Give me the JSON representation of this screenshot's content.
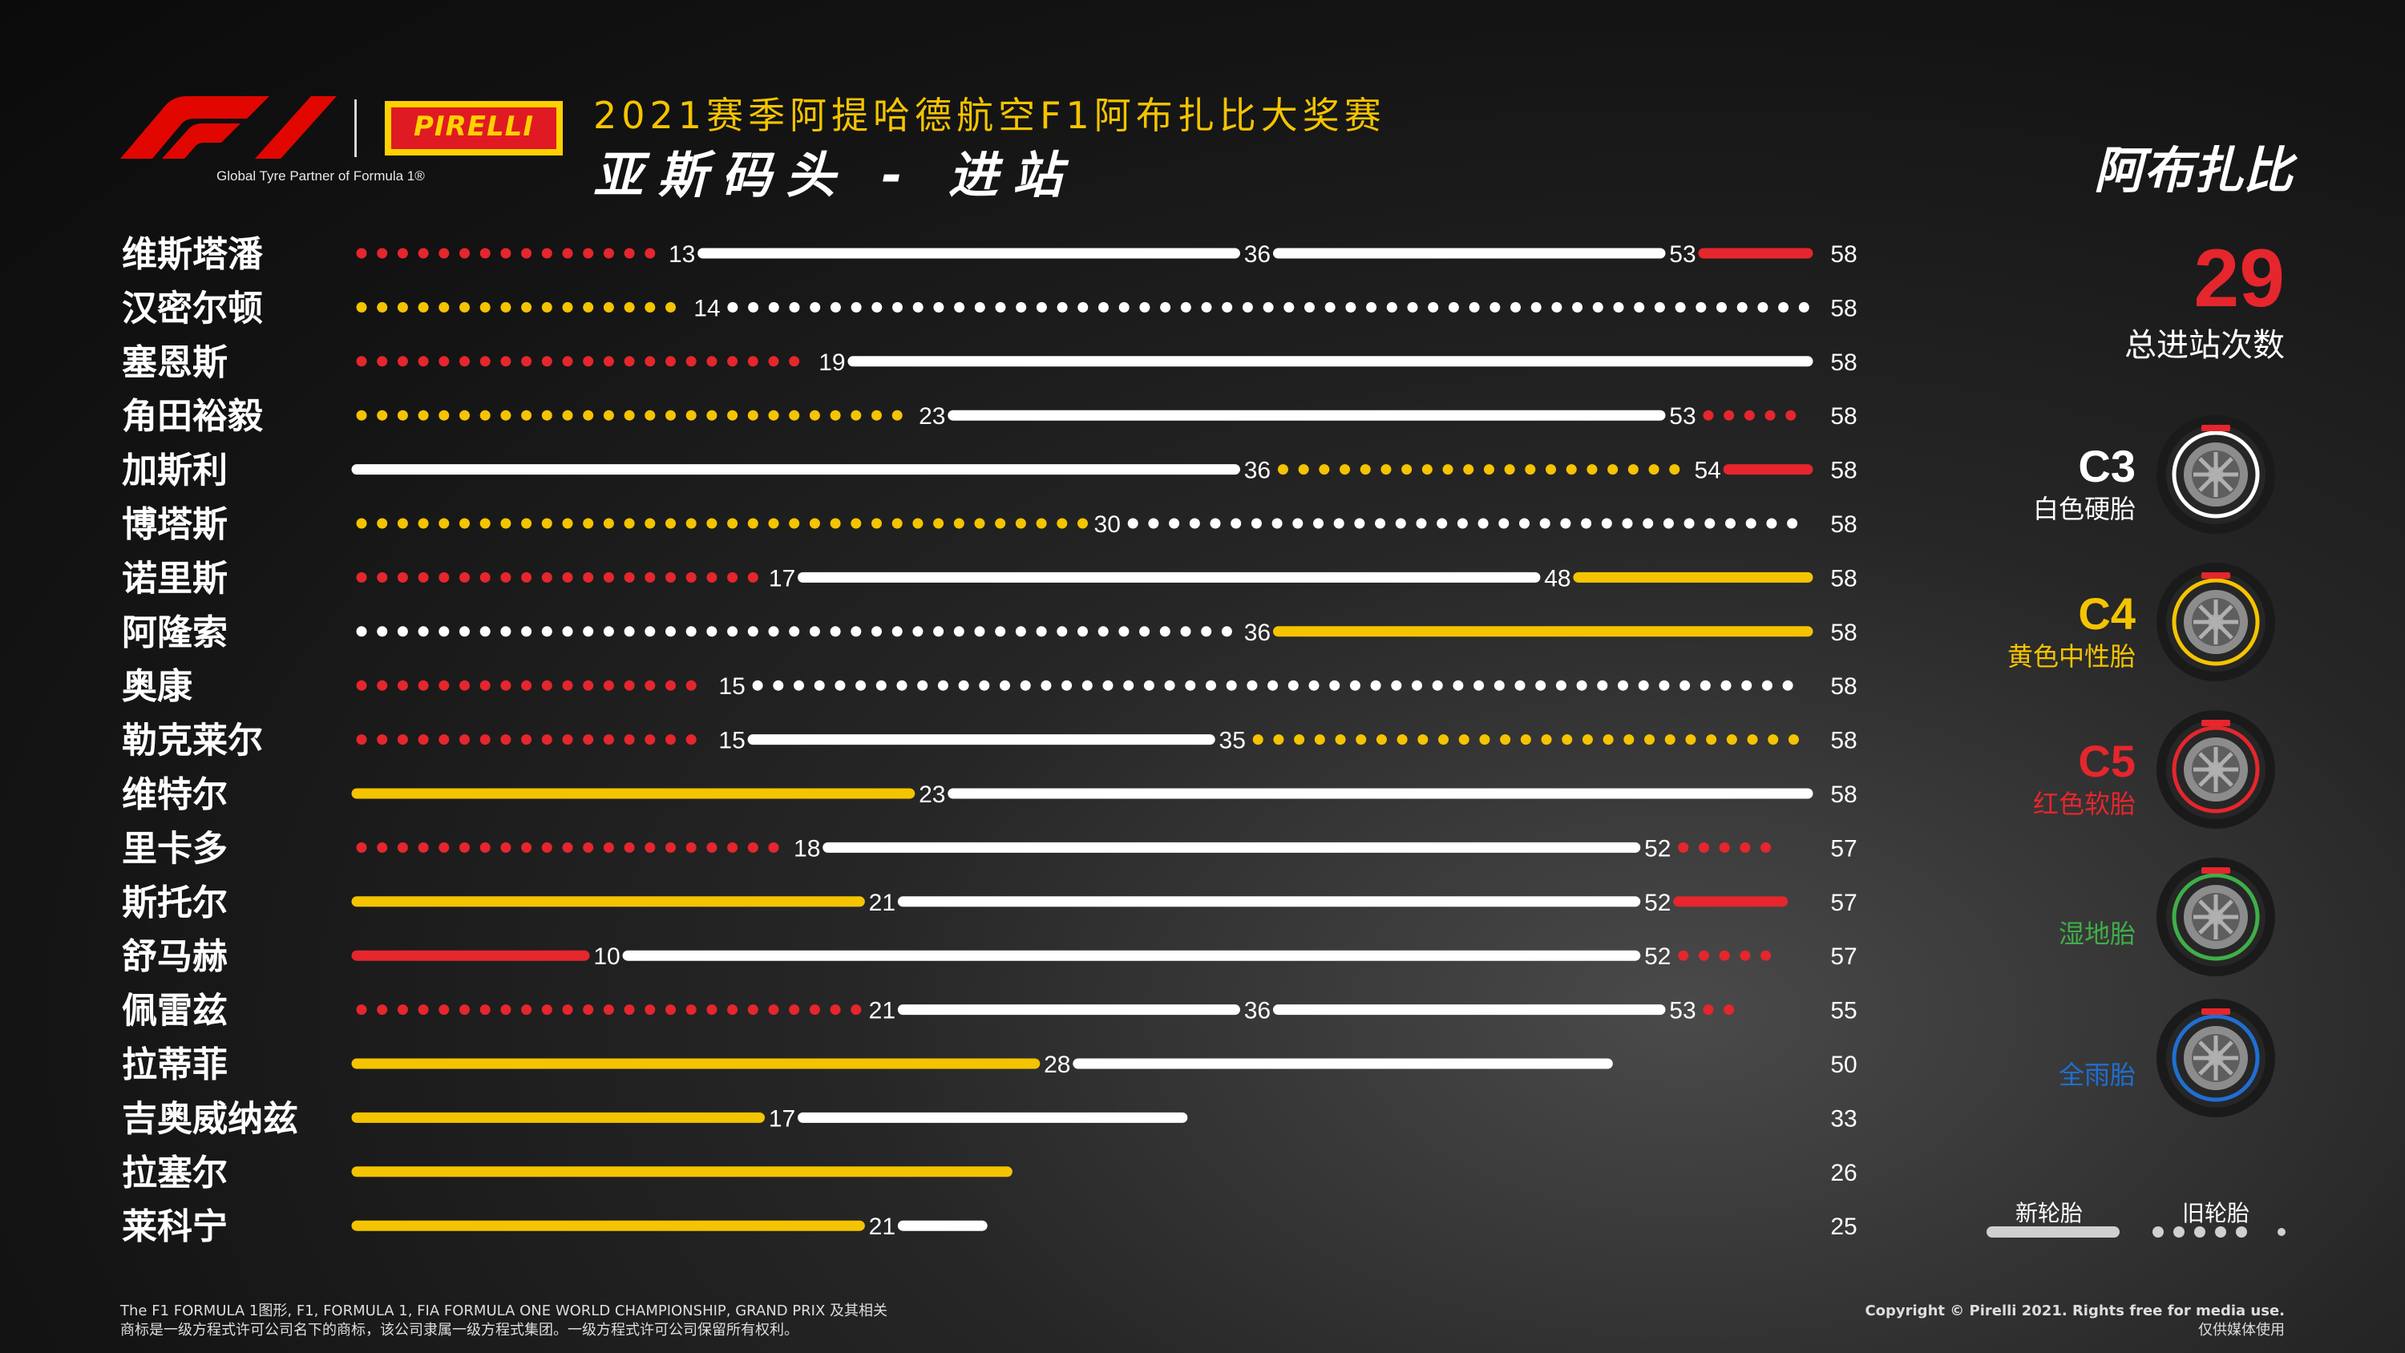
{
  "header": {
    "partner_text": "Global Tyre Partner of Formula 1®",
    "pirelli_word": "PIRELLI",
    "title_line1": "2021赛季阿提哈德航空F1阿布扎比大奖赛",
    "title_line2": "亚斯码头  -  进站",
    "race_name": "阿布扎比"
  },
  "summary": {
    "total_stops": "29",
    "total_label": "总进站次数"
  },
  "tyre_legend": [
    {
      "code": "C3",
      "desc": "白色硬胎",
      "color": "#ffffff",
      "icon": "pirelli-tyre-white-icon"
    },
    {
      "code": "C4",
      "desc": "黄色中性胎",
      "color": "#f5c400",
      "icon": "pirelli-tyre-yellow-icon"
    },
    {
      "code": "C5",
      "desc": "红色软胎",
      "color": "#e5262d",
      "icon": "pirelli-tyre-red-icon"
    },
    {
      "code": "",
      "desc": "湿地胎",
      "color": "#3fae49",
      "icon": "pirelli-tyre-green-icon"
    },
    {
      "code": "",
      "desc": "全雨胎",
      "color": "#1f6fd1",
      "icon": "pirelli-tyre-blue-icon"
    }
  ],
  "usage_legend": {
    "new_label": "新轮胎",
    "used_label": "旧轮胎"
  },
  "footer": {
    "left_line1": "The F1 FORMULA 1图形, F1, FORMULA 1, FIA FORMULA ONE WORLD CHAMPIONSHIP, GRAND PRIX 及其相关",
    "left_line2": "商标是一级方程式许可公司名下的商标，该公司隶属一级方程式集团。一级方程式许可公司保留所有权利。",
    "right_line1": "Copyright © Pirelli 2021. Rights free for media use.",
    "right_line2": "仅供媒体使用"
  },
  "chart_data": {
    "type": "bar",
    "subtype": "stint-timeline",
    "x_unit": "lap",
    "xlim": [
      0,
      58
    ],
    "compound_colors": {
      "C3": "#ffffff",
      "C4": "#f5c400",
      "C5": "#e5262d"
    },
    "drivers": [
      {
        "name": "维斯塔潘",
        "laps": 58,
        "stints": [
          {
            "compound": "C5",
            "new": false,
            "start": 0,
            "end": 13
          },
          {
            "compound": "C3",
            "new": true,
            "start": 13,
            "end": 36
          },
          {
            "compound": "C3",
            "new": true,
            "start": 36,
            "end": 53
          },
          {
            "compound": "C5",
            "new": true,
            "start": 53,
            "end": 58
          }
        ]
      },
      {
        "name": "汉密尔顿",
        "laps": 58,
        "stints": [
          {
            "compound": "C4",
            "new": false,
            "start": 0,
            "end": 14
          },
          {
            "compound": "C3",
            "new": false,
            "start": 14,
            "end": 58
          }
        ]
      },
      {
        "name": "塞恩斯",
        "laps": 58,
        "stints": [
          {
            "compound": "C5",
            "new": false,
            "start": 0,
            "end": 19
          },
          {
            "compound": "C3",
            "new": true,
            "start": 19,
            "end": 58
          }
        ]
      },
      {
        "name": "角田裕毅",
        "laps": 58,
        "stints": [
          {
            "compound": "C4",
            "new": false,
            "start": 0,
            "end": 23
          },
          {
            "compound": "C3",
            "new": true,
            "start": 23,
            "end": 53
          },
          {
            "compound": "C5",
            "new": false,
            "start": 53,
            "end": 58
          }
        ]
      },
      {
        "name": "加斯利",
        "laps": 58,
        "stints": [
          {
            "compound": "C3",
            "new": true,
            "start": 0,
            "end": 36
          },
          {
            "compound": "C4",
            "new": false,
            "start": 36,
            "end": 54
          },
          {
            "compound": "C5",
            "new": true,
            "start": 54,
            "end": 58
          }
        ]
      },
      {
        "name": "博塔斯",
        "laps": 58,
        "stints": [
          {
            "compound": "C4",
            "new": false,
            "start": 0,
            "end": 30
          },
          {
            "compound": "C3",
            "new": false,
            "start": 30,
            "end": 58
          }
        ]
      },
      {
        "name": "诺里斯",
        "laps": 58,
        "stints": [
          {
            "compound": "C5",
            "new": false,
            "start": 0,
            "end": 17
          },
          {
            "compound": "C3",
            "new": true,
            "start": 17,
            "end": 48
          },
          {
            "compound": "C4",
            "new": true,
            "start": 48,
            "end": 58
          }
        ]
      },
      {
        "name": "阿隆索",
        "laps": 58,
        "stints": [
          {
            "compound": "C3",
            "new": false,
            "start": 0,
            "end": 36
          },
          {
            "compound": "C4",
            "new": true,
            "start": 36,
            "end": 58
          }
        ]
      },
      {
        "name": "奥康",
        "laps": 58,
        "stints": [
          {
            "compound": "C5",
            "new": false,
            "start": 0,
            "end": 15
          },
          {
            "compound": "C3",
            "new": false,
            "start": 15,
            "end": 58
          }
        ]
      },
      {
        "name": "勒克莱尔",
        "laps": 58,
        "stints": [
          {
            "compound": "C5",
            "new": false,
            "start": 0,
            "end": 15
          },
          {
            "compound": "C3",
            "new": true,
            "start": 15,
            "end": 35
          },
          {
            "compound": "C4",
            "new": false,
            "start": 35,
            "end": 58
          }
        ]
      },
      {
        "name": "维特尔",
        "laps": 58,
        "stints": [
          {
            "compound": "C4",
            "new": true,
            "start": 0,
            "end": 23
          },
          {
            "compound": "C3",
            "new": true,
            "start": 23,
            "end": 58
          }
        ]
      },
      {
        "name": "里卡多",
        "laps": 57,
        "stints": [
          {
            "compound": "C5",
            "new": false,
            "start": 0,
            "end": 18
          },
          {
            "compound": "C3",
            "new": true,
            "start": 18,
            "end": 52
          },
          {
            "compound": "C5",
            "new": false,
            "start": 52,
            "end": 57
          }
        ]
      },
      {
        "name": "斯托尔",
        "laps": 57,
        "stints": [
          {
            "compound": "C4",
            "new": true,
            "start": 0,
            "end": 21
          },
          {
            "compound": "C3",
            "new": true,
            "start": 21,
            "end": 52
          },
          {
            "compound": "C5",
            "new": true,
            "start": 52,
            "end": 57
          }
        ]
      },
      {
        "name": "舒马赫",
        "laps": 57,
        "stints": [
          {
            "compound": "C5",
            "new": true,
            "start": 0,
            "end": 10
          },
          {
            "compound": "C3",
            "new": true,
            "start": 10,
            "end": 52
          },
          {
            "compound": "C5",
            "new": false,
            "start": 52,
            "end": 57
          }
        ]
      },
      {
        "name": "佩雷兹",
        "laps": 55,
        "stints": [
          {
            "compound": "C5",
            "new": false,
            "start": 0,
            "end": 21
          },
          {
            "compound": "C3",
            "new": true,
            "start": 21,
            "end": 36
          },
          {
            "compound": "C3",
            "new": true,
            "start": 36,
            "end": 53
          },
          {
            "compound": "C5",
            "new": false,
            "start": 53,
            "end": 55
          }
        ]
      },
      {
        "name": "拉蒂菲",
        "laps": 50,
        "stints": [
          {
            "compound": "C4",
            "new": true,
            "start": 0,
            "end": 28
          },
          {
            "compound": "C3",
            "new": true,
            "start": 28,
            "end": 50
          }
        ]
      },
      {
        "name": "吉奥威纳兹",
        "laps": 33,
        "stints": [
          {
            "compound": "C4",
            "new": true,
            "start": 0,
            "end": 17
          },
          {
            "compound": "C3",
            "new": true,
            "start": 17,
            "end": 33
          }
        ]
      },
      {
        "name": "拉塞尔",
        "laps": 26,
        "stints": [
          {
            "compound": "C4",
            "new": true,
            "start": 0,
            "end": 26
          }
        ]
      },
      {
        "name": "莱科宁",
        "laps": 25,
        "stints": [
          {
            "compound": "C4",
            "new": true,
            "start": 0,
            "end": 21
          },
          {
            "compound": "C3",
            "new": true,
            "start": 21,
            "end": 25
          }
        ]
      }
    ]
  }
}
